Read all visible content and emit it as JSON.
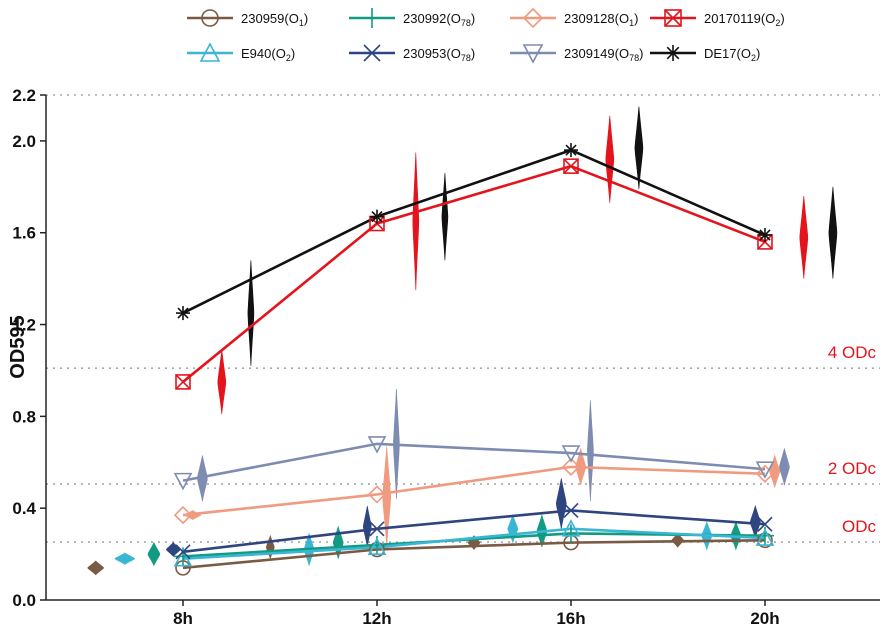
{
  "chart_data": {
    "type": "line",
    "title": "",
    "xlabel": "",
    "ylabel": "OD595",
    "categories": [
      "8h",
      "12h",
      "16h",
      "20h"
    ],
    "ylim": [
      0,
      2.2
    ],
    "yticks": [
      "0.0",
      "0.4",
      "0.8",
      "1.2",
      "1.6",
      "2.0",
      "2.2"
    ],
    "ytick_values": [
      0,
      0.4,
      0.8,
      1.2,
      1.6,
      2.0,
      2.2
    ],
    "legend_position": "top",
    "reference_lines": [
      {
        "label": "4 ODc",
        "value": 1.01,
        "color": "#e3141c"
      },
      {
        "label": "2 ODc",
        "value": 0.505,
        "color": "#e3141c"
      },
      {
        "label": "ODc",
        "value": 0.2525,
        "color": "#e3141c"
      },
      {
        "label": "",
        "value": 2.2,
        "color": "#e3141c"
      }
    ],
    "series": [
      {
        "name": "230959(O",
        "sub": "1",
        "color": "#7a5a43",
        "marker": "circle",
        "values": [
          0.14,
          0.22,
          0.25,
          0.26
        ],
        "violins": [
          {
            "x": -0.45,
            "c": 0.14,
            "hh": 0.03,
            "hw": 8
          },
          {
            "x": 0.45,
            "c": 0.23,
            "hh": 0.05,
            "hw": 4
          },
          {
            "x": 1.5,
            "c": 0.25,
            "hh": 0.03,
            "hw": 6
          },
          {
            "x": 2.55,
            "c": 0.26,
            "hh": 0.03,
            "hw": 6
          }
        ]
      },
      {
        "name": "230992(O",
        "sub": "78",
        "color": "#129b82",
        "marker": "plus",
        "values": [
          0.19,
          0.24,
          0.29,
          0.28
        ],
        "violins": [
          {
            "x": -0.15,
            "c": 0.2,
            "hh": 0.05,
            "hw": 6
          },
          {
            "x": 0.8,
            "c": 0.25,
            "hh": 0.07,
            "hw": 5
          },
          {
            "x": 1.85,
            "c": 0.3,
            "hh": 0.07,
            "hw": 5
          },
          {
            "x": 2.85,
            "c": 0.28,
            "hh": 0.06,
            "hw": 5
          }
        ]
      },
      {
        "name": "2309128(O",
        "sub": "1",
        "color": "#f09a7f",
        "marker": "diamond",
        "values": [
          0.37,
          0.46,
          0.58,
          0.55
        ],
        "violins": [
          {
            "x": 0.05,
            "c": 0.37,
            "hh": 0.02,
            "hw": 8
          },
          {
            "x": 1.05,
            "c": 0.45,
            "hh": 0.22,
            "hw": 4
          },
          {
            "x": 2.05,
            "c": 0.58,
            "hh": 0.08,
            "hw": 5
          },
          {
            "x": 3.05,
            "c": 0.56,
            "hh": 0.07,
            "hw": 5
          }
        ]
      },
      {
        "name": "20170119(O",
        "sub": "2",
        "color": "#e3141c",
        "marker": "boxx",
        "values": [
          0.95,
          1.64,
          1.89,
          1.56
        ],
        "violins": [
          {
            "x": 0.2,
            "c": 0.95,
            "hh": 0.14,
            "hw": 4
          },
          {
            "x": 1.2,
            "c": 1.65,
            "hh": 0.3,
            "hw": 3
          },
          {
            "x": 2.2,
            "c": 1.92,
            "hh": 0.19,
            "hw": 4
          },
          {
            "x": 3.2,
            "c": 1.58,
            "hh": 0.18,
            "hw": 4
          }
        ]
      },
      {
        "name": "E940(O",
        "sub": "2",
        "color": "#38b6d3",
        "marker": "triangle",
        "values": [
          0.18,
          0.23,
          0.31,
          0.27
        ],
        "violins": [
          {
            "x": -0.3,
            "c": 0.18,
            "hh": 0.025,
            "hw": 10
          },
          {
            "x": 0.65,
            "c": 0.22,
            "hh": 0.07,
            "hw": 5
          },
          {
            "x": 1.7,
            "c": 0.31,
            "hh": 0.06,
            "hw": 5
          },
          {
            "x": 2.7,
            "c": 0.28,
            "hh": 0.06,
            "hw": 5
          }
        ]
      },
      {
        "name": "230953(O",
        "sub": "78",
        "color": "#2e4580",
        "marker": "x",
        "values": [
          0.21,
          0.31,
          0.39,
          0.33
        ],
        "violins": [
          {
            "x": -0.05,
            "c": 0.22,
            "hh": 0.03,
            "hw": 7
          },
          {
            "x": 0.95,
            "c": 0.32,
            "hh": 0.09,
            "hw": 4
          },
          {
            "x": 1.95,
            "c": 0.42,
            "hh": 0.11,
            "hw": 5
          },
          {
            "x": 2.95,
            "c": 0.34,
            "hh": 0.07,
            "hw": 5
          }
        ]
      },
      {
        "name": "2309149(O",
        "sub": "78",
        "color": "#7e8cb1",
        "marker": "triangle-down",
        "values": [
          0.52,
          0.68,
          0.64,
          0.57
        ],
        "violins": [
          {
            "x": 0.1,
            "c": 0.53,
            "hh": 0.1,
            "hw": 5
          },
          {
            "x": 1.1,
            "c": 0.68,
            "hh": 0.24,
            "hw": 3
          },
          {
            "x": 2.1,
            "c": 0.65,
            "hh": 0.22,
            "hw": 3
          },
          {
            "x": 3.1,
            "c": 0.58,
            "hh": 0.08,
            "hw": 5
          }
        ]
      },
      {
        "name": "DE17(O",
        "sub": "2",
        "color": "#111111",
        "marker": "asterisk",
        "values": [
          1.25,
          1.67,
          1.96,
          1.59
        ],
        "violins": [
          {
            "x": 0.35,
            "c": 1.25,
            "hh": 0.23,
            "hw": 3
          },
          {
            "x": 1.35,
            "c": 1.67,
            "hh": 0.19,
            "hw": 3
          },
          {
            "x": 2.35,
            "c": 1.97,
            "hh": 0.18,
            "hw": 4
          },
          {
            "x": 3.35,
            "c": 1.6,
            "hh": 0.2,
            "hw": 4
          }
        ]
      }
    ]
  }
}
